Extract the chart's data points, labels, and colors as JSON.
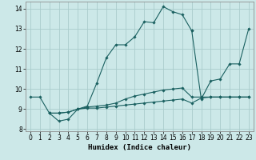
{
  "xlabel": "Humidex (Indice chaleur)",
  "bg_color": "#cce8e8",
  "grid_color": "#aacccc",
  "line_color": "#1a6060",
  "xlim": [
    -0.5,
    23.5
  ],
  "ylim": [
    7.9,
    14.35
  ],
  "xticks": [
    0,
    1,
    2,
    3,
    4,
    5,
    6,
    7,
    8,
    9,
    10,
    11,
    12,
    13,
    14,
    15,
    16,
    17,
    18,
    19,
    20,
    21,
    22,
    23
  ],
  "yticks": [
    8,
    9,
    10,
    11,
    12,
    13,
    14
  ],
  "lines": [
    {
      "x": [
        0,
        1,
        2,
        3,
        4,
        5,
        6,
        7,
        8,
        9,
        10,
        11,
        12,
        13,
        14,
        15,
        16,
        17
      ],
      "y": [
        9.6,
        9.6,
        8.8,
        8.4,
        8.5,
        9.0,
        9.15,
        10.3,
        11.55,
        12.2,
        12.2,
        12.6,
        13.35,
        13.3,
        14.1,
        13.85,
        13.7,
        12.9
      ]
    },
    {
      "x": [
        17,
        18,
        19,
        20,
        21,
        22,
        23
      ],
      "y": [
        12.9,
        9.5,
        10.4,
        10.5,
        11.25,
        11.25,
        13.0
      ]
    },
    {
      "x": [
        2,
        3,
        4,
        5,
        6,
        7,
        8,
        9,
        10,
        11,
        12,
        13,
        14,
        15,
        16,
        17,
        18,
        19,
        20,
        21,
        22,
        23
      ],
      "y": [
        8.8,
        8.8,
        8.85,
        9.0,
        9.1,
        9.15,
        9.2,
        9.3,
        9.5,
        9.65,
        9.75,
        9.85,
        9.95,
        10.0,
        10.05,
        9.6,
        9.6,
        9.6,
        9.6,
        9.6,
        9.6,
        9.6
      ]
    },
    {
      "x": [
        2,
        3,
        4,
        5,
        6,
        7,
        8,
        9,
        10,
        11,
        12,
        13,
        14,
        15,
        16,
        17,
        18,
        19,
        20,
        21,
        22,
        23
      ],
      "y": [
        8.8,
        8.8,
        8.85,
        9.0,
        9.05,
        9.05,
        9.1,
        9.15,
        9.2,
        9.25,
        9.3,
        9.35,
        9.4,
        9.45,
        9.5,
        9.3,
        9.55,
        9.6,
        9.6,
        9.6,
        9.6,
        9.6
      ]
    }
  ]
}
